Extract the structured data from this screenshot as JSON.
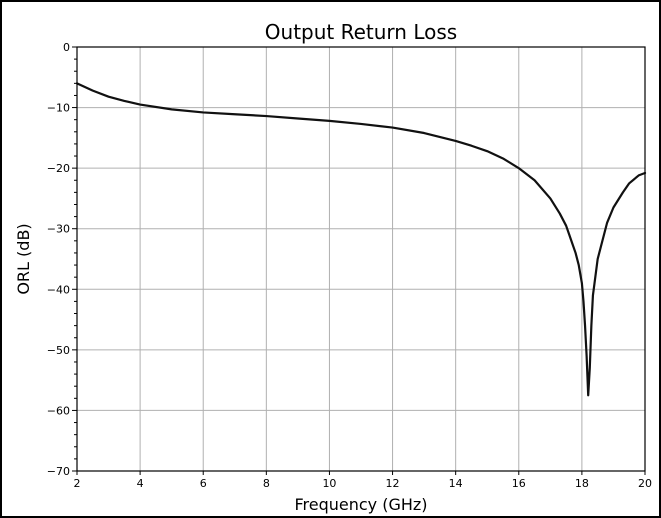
{
  "chart_data": {
    "type": "line",
    "title": "Output Return Loss",
    "xlabel": "Frequency (GHz)",
    "ylabel": "ORL (dB)",
    "xlim": [
      2,
      20
    ],
    "ylim": [
      -70,
      0
    ],
    "xticks": [
      2,
      4,
      6,
      8,
      10,
      12,
      14,
      16,
      18,
      20
    ],
    "yticks": [
      0,
      -10,
      -20,
      -30,
      -40,
      -50,
      -60,
      -70
    ],
    "y_minor_step": 2,
    "grid": true,
    "legend": "none",
    "series": [
      {
        "color": "#111111",
        "x": [
          2.0,
          2.5,
          3.0,
          3.5,
          4.0,
          5.0,
          6.0,
          7.0,
          8.0,
          9.0,
          10.0,
          11.0,
          12.0,
          13.0,
          14.0,
          14.5,
          15.0,
          15.5,
          16.0,
          16.5,
          17.0,
          17.3,
          17.5,
          17.6,
          17.7,
          17.8,
          17.9,
          18.0,
          18.05,
          18.1,
          18.15,
          18.2,
          18.25,
          18.3,
          18.35,
          18.4,
          18.5,
          18.6,
          18.8,
          19.0,
          19.3,
          19.5,
          19.8,
          20.0
        ],
        "y": [
          -6.0,
          -7.2,
          -8.2,
          -8.9,
          -9.5,
          -10.3,
          -10.8,
          -11.1,
          -11.4,
          -11.8,
          -12.2,
          -12.7,
          -13.3,
          -14.2,
          -15.5,
          -16.3,
          -17.2,
          -18.4,
          -20.0,
          -22.0,
          -25.0,
          -27.5,
          -29.5,
          -31.0,
          -32.5,
          -34.0,
          -36.0,
          -39.0,
          -42.0,
          -46.0,
          -51.0,
          -57.5,
          -53.0,
          -46.0,
          -41.0,
          -39.0,
          -35.0,
          -33.0,
          -29.0,
          -26.5,
          -24.0,
          -22.5,
          -21.2,
          -20.8
        ]
      }
    ]
  }
}
